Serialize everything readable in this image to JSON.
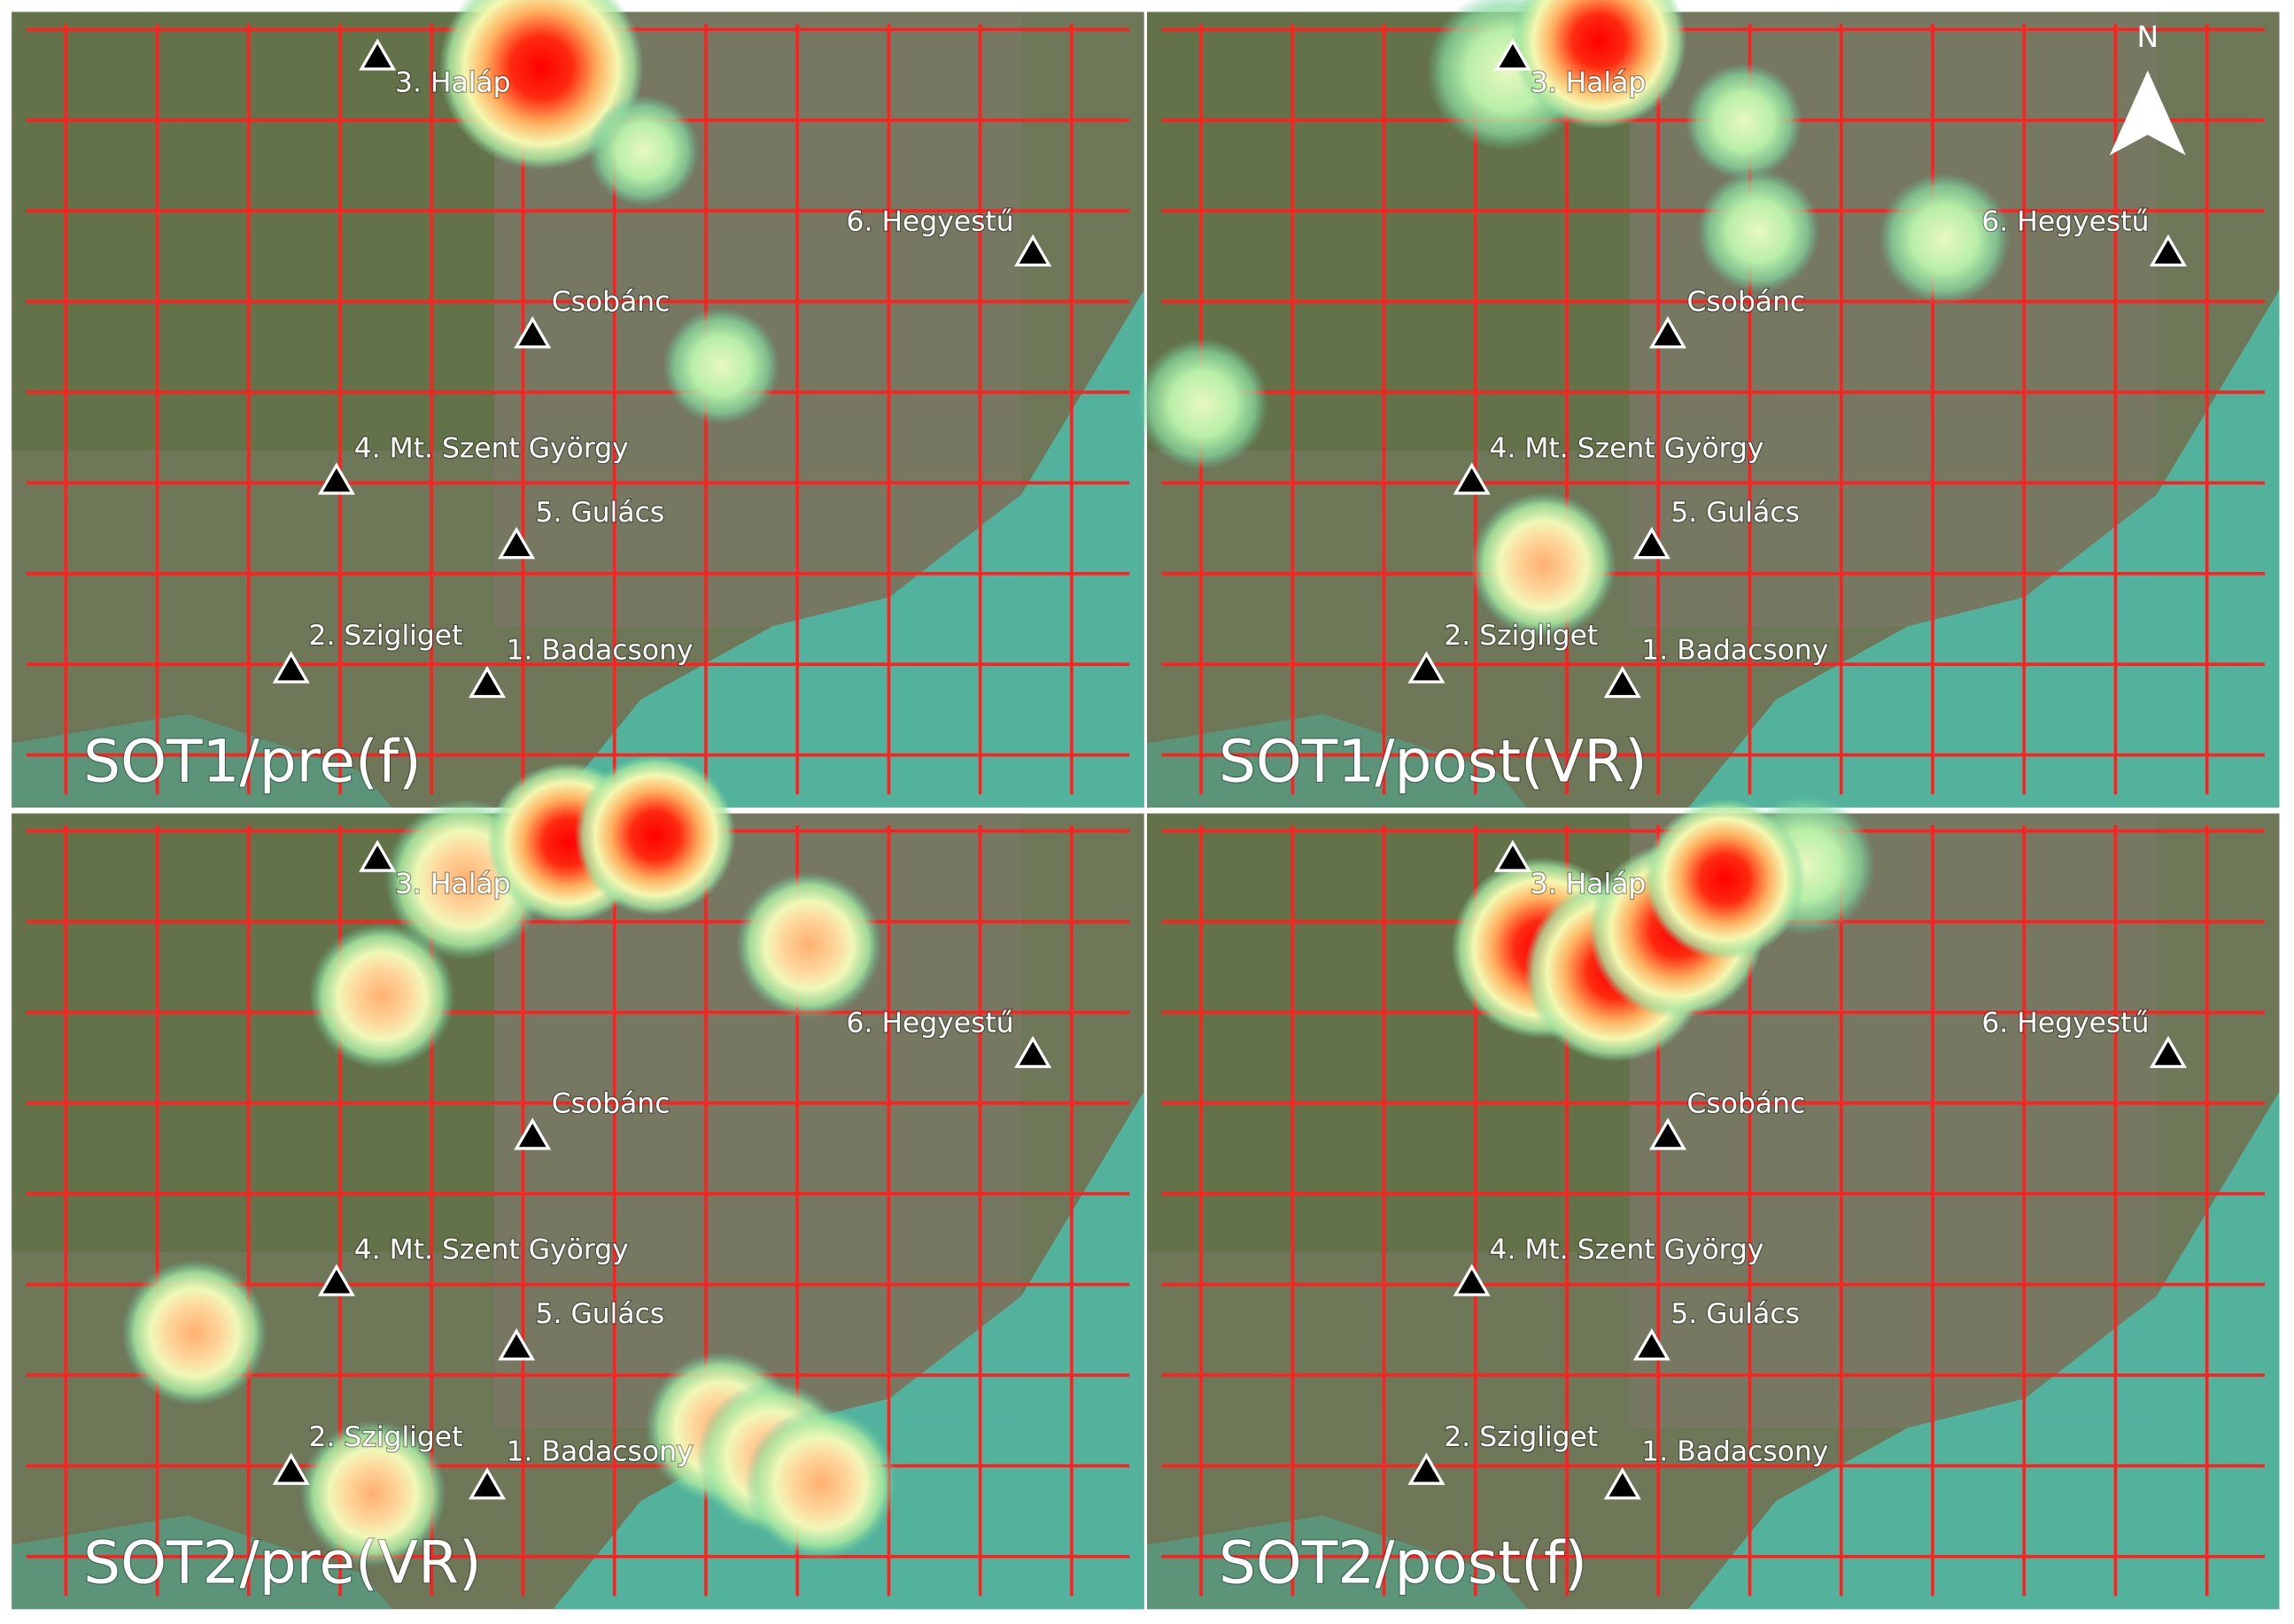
{
  "north_arrow": "N",
  "panels": [
    {
      "title": "SOT1/pre(f)",
      "landmarks": [
        "3. Haláp",
        "6. Hegyestű",
        "Csobánc",
        "4. Mt. Szent György",
        "5. Gulács",
        "2. Szigliget",
        "1. Badacsony"
      ]
    },
    {
      "title": "SOT1/post(VR)",
      "landmarks": [
        "3. Haláp",
        "6. Hegyestű",
        "Csobánc",
        "4. Mt. Szent György",
        "5. Gulács",
        "2. Szigliget",
        "1. Badacsony"
      ]
    },
    {
      "title": "SOT2/pre(VR)",
      "landmarks": [
        "3. Haláp",
        "6. Hegyestű",
        "Csobánc",
        "4. Mt. Szent György",
        "5. Gulács",
        "2. Szigliget",
        "1. Badacsony"
      ]
    },
    {
      "title": "SOT2/post(f)",
      "landmarks": [
        "3. Haláp",
        "6. Hegyestű",
        "Csobánc",
        "4. Mt. Szent György",
        "5. Gulács",
        "2. Szigliget",
        "1. Badacsony"
      ]
    }
  ]
}
